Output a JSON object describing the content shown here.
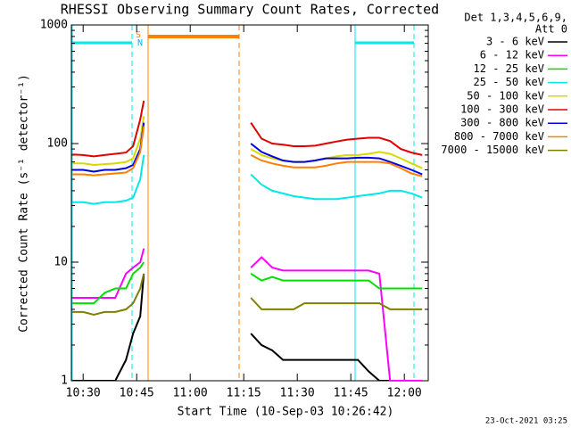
{
  "chart_data": {
    "type": "line",
    "title": "RHESSI Observing Summary Count Rates, Corrected",
    "xlabel": "Start Time (10-Sep-03 10:26:42)",
    "ylabel": "Corrected Count Rate (s⁻¹ detector⁻¹)",
    "legend_title": [
      "Det 1,3,4,5,6,9,",
      "Att 0"
    ],
    "footer": "23-Oct-2021 03:25",
    "annotations": [
      "S",
      "N"
    ],
    "yscale": "log",
    "legend": "right",
    "xlim": [
      626.7,
      726.7
    ],
    "ylim": [
      1,
      1000
    ],
    "xticks": [
      {
        "value": 630,
        "label": "10:30"
      },
      {
        "value": 645,
        "label": "10:45"
      },
      {
        "value": 660,
        "label": "11:00"
      },
      {
        "value": 675,
        "label": "11:15"
      },
      {
        "value": 690,
        "label": "11:30"
      },
      {
        "value": 705,
        "label": "11:45"
      },
      {
        "value": 720,
        "label": "12:00"
      }
    ],
    "yticks": [
      1,
      10,
      100,
      1000
    ],
    "x": [
      627,
      630,
      633,
      636,
      639,
      642,
      644,
      646,
      647,
      660,
      677,
      680,
      683,
      686,
      689,
      692,
      695,
      698,
      701,
      704,
      707,
      710,
      713,
      716,
      719,
      722,
      725
    ],
    "series": [
      {
        "name": "3 - 6 keV",
        "color": "#000000",
        "values": [
          1,
          1,
          1,
          1,
          1,
          1.5,
          2.5,
          3.5,
          8,
          null,
          2.5,
          2,
          1.8,
          1.5,
          1.5,
          1.5,
          1.5,
          1.5,
          1.5,
          1.5,
          1.5,
          1.2,
          1,
          1,
          1,
          1,
          1
        ]
      },
      {
        "name": "6 - 12 keV",
        "color": "#ff00ff",
        "values": [
          5,
          5,
          5,
          5,
          5,
          8,
          9,
          10,
          13,
          null,
          9,
          11,
          9,
          8.5,
          8.5,
          8.5,
          8.5,
          8.5,
          8.5,
          8.5,
          8.5,
          8.5,
          8,
          1,
          1,
          1,
          1
        ]
      },
      {
        "name": "12 - 25 keV",
        "color": "#00e000",
        "values": [
          4.5,
          4.5,
          4.5,
          5.5,
          6,
          6,
          8,
          9,
          10,
          null,
          8,
          7,
          7.5,
          7,
          7,
          7,
          7,
          7,
          7,
          7,
          7,
          7,
          6,
          6,
          6,
          6,
          6
        ]
      },
      {
        "name": "25 - 50 keV",
        "color": "#00e8e8",
        "values": [
          32,
          32,
          31,
          32,
          32,
          33,
          35,
          50,
          80,
          null,
          55,
          45,
          40,
          38,
          36,
          35,
          34,
          34,
          34,
          35,
          36,
          37,
          38,
          40,
          40,
          38,
          35
        ]
      },
      {
        "name": "50 - 100 keV",
        "color": "#d8d800",
        "values": [
          68,
          68,
          66,
          67,
          68,
          70,
          75,
          110,
          170,
          null,
          90,
          80,
          75,
          72,
          70,
          70,
          72,
          75,
          78,
          80,
          80,
          82,
          85,
          82,
          75,
          68,
          62
        ]
      },
      {
        "name": "100 - 300 keV",
        "color": "#e00000",
        "values": [
          81,
          80,
          78,
          80,
          82,
          84,
          95,
          160,
          230,
          null,
          150,
          110,
          100,
          98,
          95,
          95,
          96,
          100,
          104,
          108,
          110,
          112,
          112,
          105,
          90,
          84,
          80
        ]
      },
      {
        "name": "300 - 800 keV",
        "color": "#0000e0",
        "values": [
          60,
          60,
          58,
          60,
          60,
          62,
          66,
          90,
          150,
          null,
          100,
          85,
          78,
          72,
          70,
          70,
          72,
          75,
          75,
          75,
          76,
          76,
          75,
          70,
          65,
          60,
          55
        ]
      },
      {
        "name": "800 - 7000 keV",
        "color": "#ff8000",
        "values": [
          55,
          55,
          54,
          55,
          56,
          57,
          62,
          85,
          140,
          null,
          80,
          72,
          68,
          65,
          63,
          63,
          63,
          65,
          68,
          70,
          70,
          70,
          70,
          68,
          62,
          56,
          53
        ]
      },
      {
        "name": "7000 - 15000 keV",
        "color": "#808000",
        "values": [
          3.8,
          3.8,
          3.6,
          3.8,
          3.8,
          4,
          4.5,
          6,
          8,
          null,
          5,
          4,
          4,
          4,
          4,
          4.5,
          4.5,
          4.5,
          4.5,
          4.5,
          4.5,
          4.5,
          4.5,
          4,
          4,
          4,
          4
        ]
      }
    ]
  }
}
